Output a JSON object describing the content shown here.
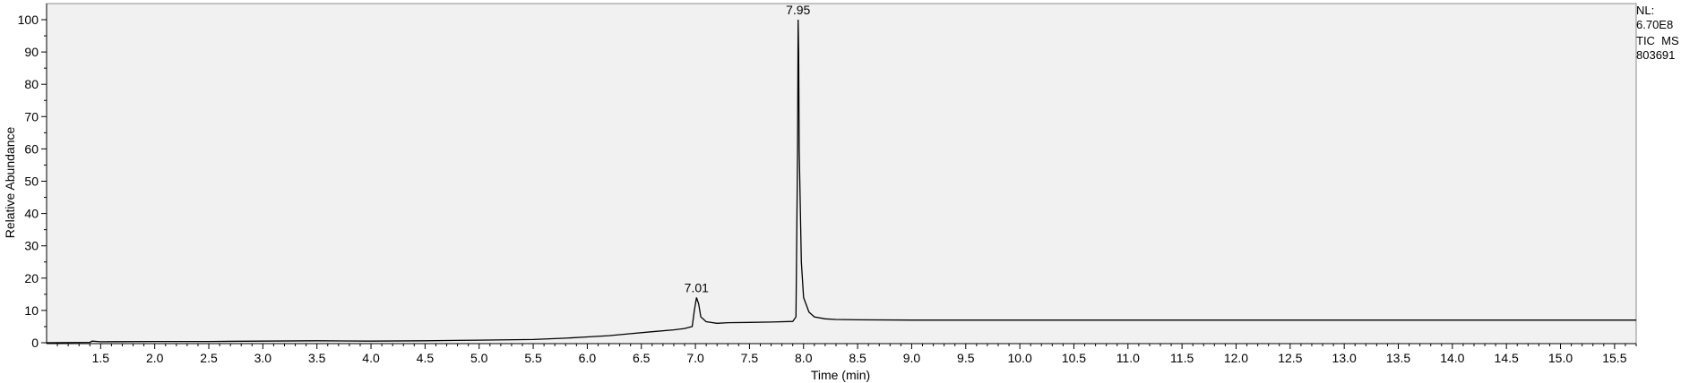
{
  "chart_data": {
    "type": "line",
    "xlabel": "Time (min)",
    "ylabel": "Relative Abundance",
    "xlim": [
      1.0,
      15.7
    ],
    "ylim": [
      0,
      100
    ],
    "x_ticks": [
      "1.5",
      "2.0",
      "2.5",
      "3.0",
      "3.5",
      "4.0",
      "4.5",
      "5.0",
      "5.5",
      "6.0",
      "6.5",
      "7.0",
      "7.5",
      "8.0",
      "8.5",
      "9.0",
      "9.5",
      "10.0",
      "10.5",
      "11.0",
      "11.5",
      "12.0",
      "12.5",
      "13.0",
      "13.5",
      "14.0",
      "14.5",
      "15.0",
      "15.5"
    ],
    "y_ticks": [
      "0",
      "10",
      "20",
      "30",
      "40",
      "50",
      "60",
      "70",
      "80",
      "90",
      "100"
    ],
    "grid": false,
    "peak_labels": [
      {
        "x": 7.01,
        "y": 14,
        "text": "7.01"
      },
      {
        "x": 7.95,
        "y": 100,
        "text": "7.95"
      }
    ],
    "series": [
      {
        "x": [
          1.0,
          1.4,
          1.42,
          1.5,
          2.0,
          2.5,
          3.0,
          3.5,
          4.0,
          4.5,
          5.0,
          5.5,
          5.8,
          6.0,
          6.2,
          6.4,
          6.6,
          6.8,
          6.9,
          6.97,
          6.99,
          7.01,
          7.03,
          7.05,
          7.1,
          7.2,
          7.3,
          7.5,
          7.7,
          7.9,
          7.93,
          7.945,
          7.95,
          7.955,
          7.96,
          7.98,
          8.0,
          8.05,
          8.1,
          8.2,
          8.3,
          8.5,
          9.0,
          10.0,
          11.0,
          12.0,
          13.0,
          14.0,
          15.0,
          15.7
        ],
        "y": [
          0.0,
          0.1,
          0.5,
          0.3,
          0.4,
          0.4,
          0.5,
          0.6,
          0.5,
          0.6,
          0.8,
          1.0,
          1.4,
          1.8,
          2.2,
          2.8,
          3.4,
          4.0,
          4.4,
          5.0,
          10.0,
          14.0,
          12.0,
          8.0,
          6.5,
          6.0,
          6.2,
          6.3,
          6.4,
          6.6,
          8.0,
          60.0,
          100.0,
          90.0,
          60.0,
          25.0,
          14.0,
          9.5,
          8.0,
          7.4,
          7.2,
          7.1,
          7.0,
          7.0,
          7.0,
          7.0,
          7.0,
          7.0,
          7.0,
          7.0
        ]
      }
    ]
  },
  "info": {
    "nl_label": "NL:",
    "nl_value": "6.70E8",
    "scan": "TIC  MS",
    "file_id": "803691"
  }
}
